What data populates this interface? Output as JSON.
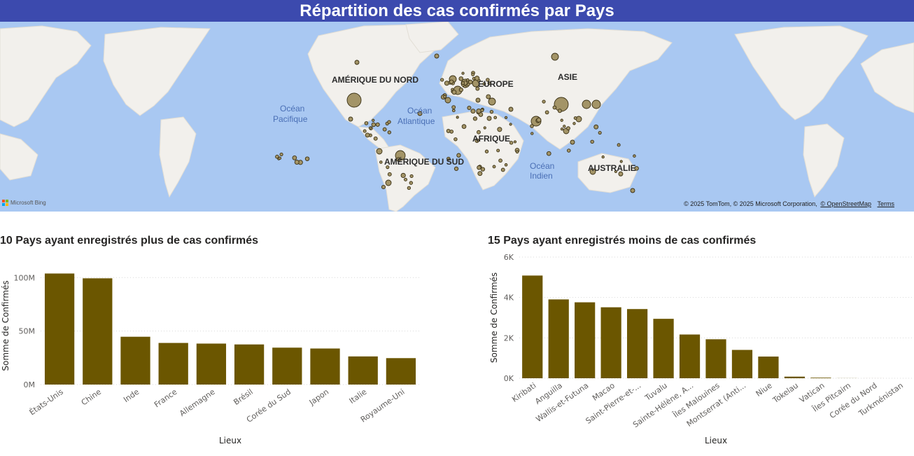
{
  "banner": {
    "title": "Répartition des cas confirmés par Pays"
  },
  "map": {
    "continents": [
      "AMÉRIQUE DU NORD",
      "EUROPE",
      "ASIE",
      "AFRIQUE",
      "AMÉRIQUE DU SUD",
      "AUSTRALIE"
    ],
    "oceans": [
      [
        "Océan",
        "Pacifique"
      ],
      [
        "Océan",
        "Atlantique"
      ],
      [
        "Océan",
        "Indien"
      ]
    ],
    "bing_logo": "Microsoft Bing",
    "credits": "© 2025 TomTom, © 2025 Microsoft Corporation,",
    "credits_link": "© OpenStreetMap",
    "terms": "Terms",
    "colors": {
      "water": "#a9c8f2",
      "land": "#f2f0ec",
      "bubble": "#a39467",
      "bubble_stroke": "#3a3014"
    }
  },
  "chart_data": [
    {
      "type": "bar",
      "title": "10 Pays ayant enregistrés plus de cas confirmés",
      "xlabel": "Lieux",
      "ylabel": "Somme de Confirmés",
      "categories": [
        "États-Unis",
        "Chine",
        "Inde",
        "France",
        "Allemagne",
        "Brésil",
        "Corée du Sud",
        "Japon",
        "Italie",
        "Royaume-Uni"
      ],
      "values": [
        103800000,
        99300000,
        44700000,
        38900000,
        38300000,
        37500000,
        34500000,
        33700000,
        26300000,
        24700000
      ],
      "ylim": [
        0,
        110000000
      ],
      "yticks": [
        0,
        50000000,
        100000000
      ],
      "ytick_labels": [
        "0M",
        "50M",
        "100M"
      ],
      "grid": true,
      "color": "#6b5600"
    },
    {
      "type": "bar",
      "title": "15 Pays ayant enregistrés moins de cas confirmés",
      "xlabel": "Lieux",
      "ylabel": "Somme de Confirmés",
      "categories": [
        "Kiribati",
        "Anguilla",
        "Wallis-et-Futuna",
        "Macao",
        "Saint-Pierre-et-...",
        "Tuvalu",
        "Sainte-Hélène, A...",
        "Îles Malouines",
        "Montserrat (Anti...",
        "Niue",
        "Tokelau",
        "Vatican",
        "Îles Pitcairn",
        "Corée du Nord",
        "Turkménistan"
      ],
      "values": [
        5085,
        3904,
        3760,
        3514,
        3426,
        2943,
        2166,
        1930,
        1403,
        1074,
        80,
        29,
        4,
        1,
        0
      ],
      "ylim": [
        0,
        6000
      ],
      "yticks": [
        0,
        2000,
        4000,
        6000
      ],
      "ytick_labels": [
        "0K",
        "2K",
        "4K",
        "6K"
      ],
      "grid": true,
      "color": "#6b5600"
    }
  ]
}
